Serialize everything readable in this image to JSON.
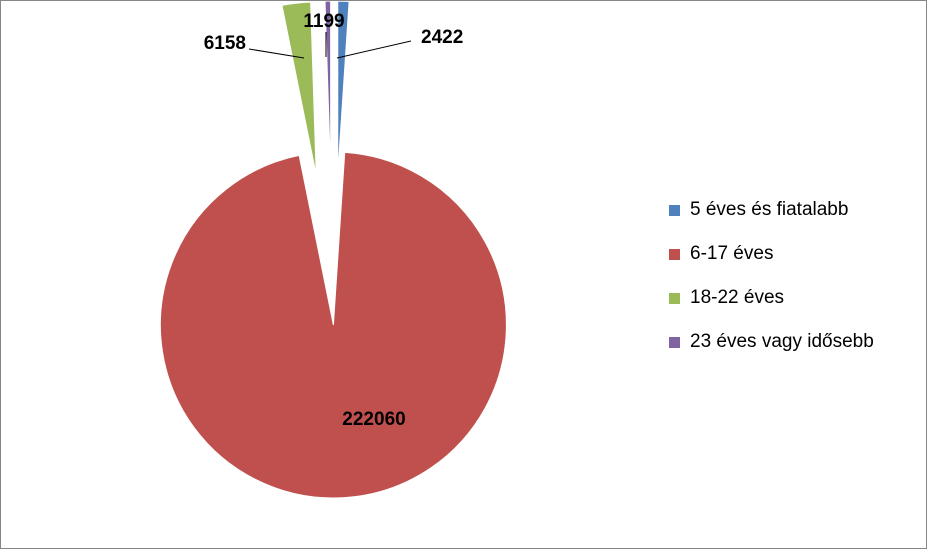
{
  "chart_data": {
    "type": "pie",
    "title": "",
    "slices": [
      {
        "label": "5 éves és fiatalabb",
        "value": 2422,
        "value_label": "2422",
        "color": "#4F81BD"
      },
      {
        "label": "6-17 éves",
        "value": 222060,
        "value_label": "222060",
        "color": "#C0504D"
      },
      {
        "label": "18-22 éves",
        "value": 6158,
        "value_label": "6158",
        "color": "#9BBB59"
      },
      {
        "label": "23 éves vagy idősebb",
        "value": 1199,
        "value_label": "1199",
        "color": "#8064A2"
      }
    ],
    "legend_position": "right",
    "exploded": true
  }
}
